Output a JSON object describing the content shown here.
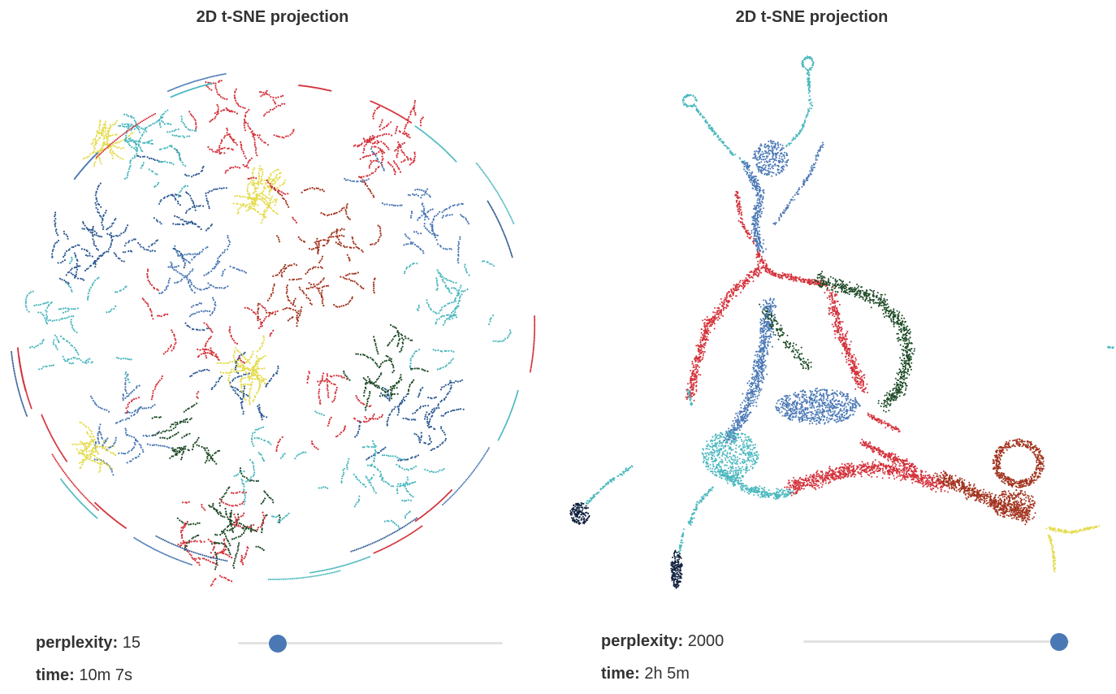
{
  "colors": {
    "cyan": "#4bb8bf",
    "red": "#d4323b",
    "navy_blue": "#2e5a94",
    "steel_blue": "#4a78b5",
    "dark_green": "#1d4a26",
    "brown": "#a2331e",
    "yellow": "#e4dc50",
    "dark_navy": "#10213f",
    "slider_thumb": "#4a78b5",
    "slider_track": "#e2e2e2"
  },
  "chart_data": [
    {
      "type": "scatter",
      "title": "2D t-SNE projection",
      "xlabel": "",
      "ylabel": "",
      "axes_visible": false,
      "grid": false,
      "shape": "roughly circular cloud of many small fragmented clusters",
      "color_groups": [
        "cyan",
        "red",
        "navy_blue",
        "steel_blue",
        "dark_green",
        "brown",
        "yellow"
      ],
      "controls": {
        "perplexity_label": "perplexity:",
        "perplexity": "15",
        "perplexity_slider_fraction": 0.15,
        "time_label": "time:",
        "time": "10m 7s"
      }
    },
    {
      "type": "scatter",
      "title": "2D t-SNE projection",
      "xlabel": "",
      "ylabel": "",
      "axes_visible": false,
      "grid": false,
      "shape": "continuous branching manifold with thin arms",
      "color_groups": [
        "cyan",
        "steel_blue",
        "red",
        "dark_green",
        "brown",
        "yellow",
        "dark_navy"
      ],
      "controls": {
        "perplexity_label": "perplexity:",
        "perplexity": "2000",
        "perplexity_slider_fraction": 0.96,
        "time_label": "time:",
        "time": "2h 5m"
      }
    }
  ]
}
